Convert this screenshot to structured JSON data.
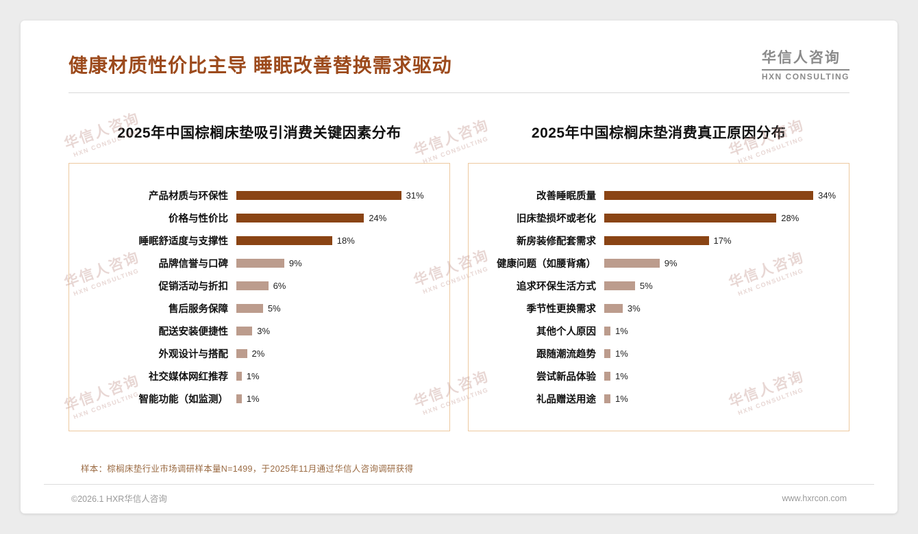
{
  "header": {
    "title": "健康材质性价比主导 睡眠改善替换需求驱动",
    "logo": {
      "name": "华信人咨询",
      "subtitle": "HXN CONSULTING"
    }
  },
  "watermark": {
    "line1": "华信人咨询",
    "line2": "HXN CONSULTING"
  },
  "theme": {
    "accent": "#9c4a1c",
    "bar_dark": "#8a4414",
    "bar_light": "#bc9c8d",
    "box_border": "#edc9a0"
  },
  "chart_data": [
    {
      "type": "bar",
      "orientation": "horizontal",
      "title": "2025年中国棕榈床垫吸引消费关键因素分布",
      "categories": [
        "产品材质与环保性",
        "价格与性价比",
        "睡眠舒适度与支撑性",
        "品牌信誉与口碑",
        "促销活动与折扣",
        "售后服务保障",
        "配送安装便捷性",
        "外观设计与搭配",
        "社交媒体网红推荐",
        "智能功能（如监测）"
      ],
      "values": [
        31,
        24,
        18,
        9,
        6,
        5,
        3,
        2,
        1,
        1
      ],
      "value_suffix": "%",
      "axis_max": 38,
      "dark_count": 3,
      "legend": "none",
      "grid": false
    },
    {
      "type": "bar",
      "orientation": "horizontal",
      "title": "2025年中国棕榈床垫消费真正原因分布",
      "categories": [
        "改善睡眠质量",
        "旧床垫损坏或老化",
        "新房装修配套需求",
        "健康问题（如腰背痛）",
        "追求环保生活方式",
        "季节性更换需求",
        "其他个人原因",
        "跟随潮流趋势",
        "尝试新品体验",
        "礼品赠送用途"
      ],
      "values": [
        34,
        28,
        17,
        9,
        5,
        3,
        1,
        1,
        1,
        1
      ],
      "value_suffix": "%",
      "axis_max": 38,
      "dark_count": 3,
      "legend": "none",
      "grid": false
    }
  ],
  "footer": {
    "sample_note": "样本：棕榈床垫行业市场调研样本量N=1499，于2025年11月通过华信人咨询调研获得",
    "copyright": "©2026.1 HXR华信人咨询",
    "website": "www.hxrcon.com"
  }
}
